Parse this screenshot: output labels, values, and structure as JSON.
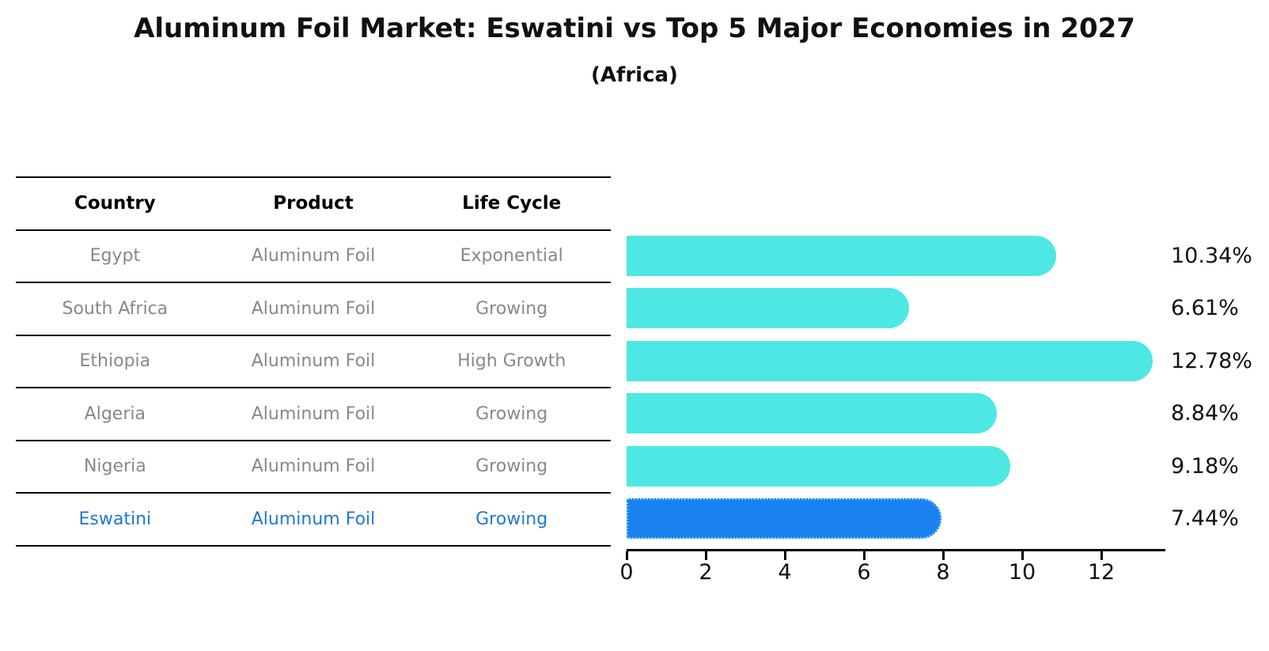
{
  "title": "Aluminum Foil Market: Eswatini vs Top 5 Major Economies in 2027",
  "subtitle": "(Africa)",
  "table": {
    "headers": [
      "Country",
      "Product",
      "Life Cycle"
    ],
    "rows": [
      {
        "country": "Egypt",
        "product": "Aluminum Foil",
        "life_cycle": "Exponential",
        "highlight": false
      },
      {
        "country": "South Africa",
        "product": "Aluminum Foil",
        "life_cycle": "Growing",
        "highlight": false
      },
      {
        "country": "Ethiopia",
        "product": "Aluminum Foil",
        "life_cycle": "High Growth",
        "highlight": false
      },
      {
        "country": "Algeria",
        "product": "Aluminum Foil",
        "life_cycle": "Growing",
        "highlight": false
      },
      {
        "country": "Nigeria",
        "product": "Aluminum Foil",
        "life_cycle": "Growing",
        "highlight": false
      },
      {
        "country": "Eswatini",
        "product": "Aluminum Foil",
        "life_cycle": "Growing",
        "highlight": true
      }
    ]
  },
  "chart_data": {
    "type": "bar",
    "orientation": "horizontal",
    "title": "Aluminum Foil Market: Eswatini vs Top 5 Major Economies in 2027",
    "subtitle": "(Africa)",
    "categories": [
      "Egypt",
      "South Africa",
      "Ethiopia",
      "Algeria",
      "Nigeria",
      "Eswatini"
    ],
    "values": [
      10.34,
      6.61,
      12.78,
      8.84,
      9.18,
      7.44
    ],
    "value_labels": [
      "10.34%",
      "6.61%",
      "12.78%",
      "8.84%",
      "9.18%",
      "7.44%"
    ],
    "unit": "%",
    "xticks": [
      0,
      2,
      4,
      6,
      8,
      10,
      12
    ],
    "xlim": [
      0,
      13.6
    ],
    "grid": false,
    "legend": false,
    "highlight_category": "Eswatini",
    "colors": {
      "bar": "#4DE8E3",
      "highlight_bar": "#1A81F0",
      "highlight_border": "#7FC5F9",
      "label": "#111111"
    }
  },
  "colors": {
    "background": "#FFFFFF",
    "table_line": "#000000",
    "header_text": "#000000",
    "row_text": "#888888",
    "highlight_text": "#1E78D7"
  }
}
